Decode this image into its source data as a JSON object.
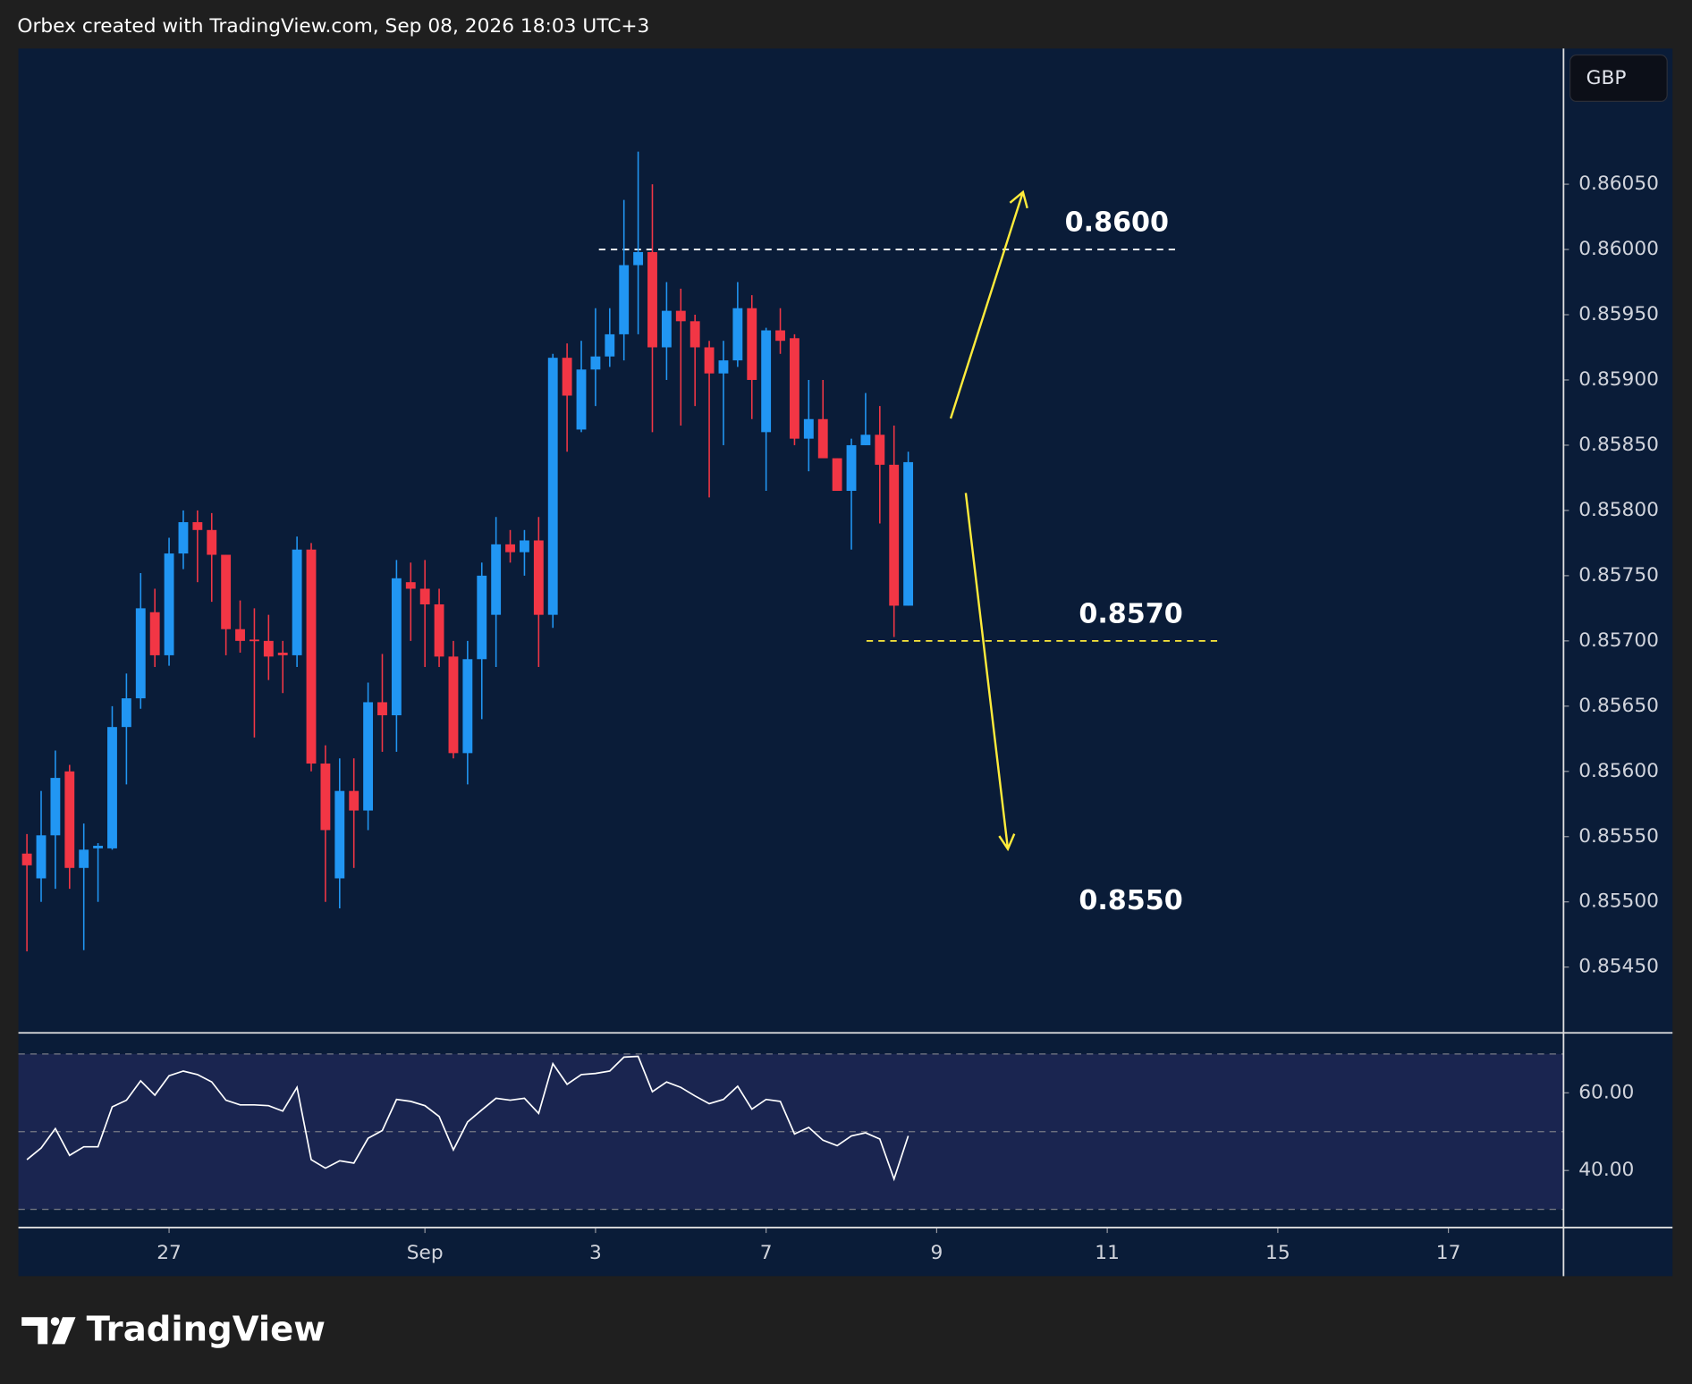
{
  "header": {
    "title": "Orbex created with TradingView.com, Sep 08, 2026 18:03 UTC+3"
  },
  "logo": "TradingView",
  "chart_data": [
    {
      "type": "candlestick",
      "currency": "GBP",
      "categories": [
        null,
        null,
        null,
        null,
        null,
        null,
        null,
        null,
        null,
        null,
        null,
        null,
        null,
        null,
        null,
        null,
        null,
        null,
        null,
        null,
        null,
        null,
        null,
        null,
        null,
        null,
        null,
        null,
        null,
        null,
        null,
        null,
        null,
        null,
        null,
        null,
        null,
        null,
        null,
        null,
        null,
        null,
        null,
        null,
        null,
        null,
        null,
        null,
        null,
        null,
        null,
        null,
        null,
        null,
        null,
        null,
        null,
        null,
        null,
        null,
        null,
        null,
        null
      ],
      "open": [
        0.85537,
        0.85518,
        0.85551,
        0.856,
        0.85526,
        0.85541,
        0.85541,
        0.85634,
        0.85656,
        0.85722,
        0.85689,
        0.85767,
        0.85791,
        0.85785,
        0.85766,
        0.85709,
        0.85701,
        0.857,
        0.85691,
        0.85689,
        0.8577,
        0.85606,
        0.85518,
        0.85585,
        0.8557,
        0.85653,
        0.85643,
        0.85745,
        0.8574,
        0.85728,
        0.85688,
        0.85614,
        0.85686,
        0.8572,
        0.85774,
        0.85768,
        0.85777,
        0.8572,
        0.85917,
        0.85862,
        0.85908,
        0.85918,
        0.85935,
        0.85988,
        0.85998,
        0.85925,
        0.85953,
        0.85945,
        0.85925,
        0.85905,
        0.85915,
        0.85955,
        0.8586,
        0.85938,
        0.85932,
        0.85855,
        0.8587,
        0.8584,
        0.85815,
        0.8585,
        0.85858,
        0.85835,
        0.85727
      ],
      "high": [
        0.85552,
        0.85585,
        0.85616,
        0.85605,
        0.8556,
        0.85545,
        0.8565,
        0.85675,
        0.85752,
        0.8574,
        0.85779,
        0.858,
        0.858,
        0.85798,
        0.85766,
        0.85731,
        0.85725,
        0.8572,
        0.857,
        0.8578,
        0.85775,
        0.8562,
        0.8561,
        0.8561,
        0.85668,
        0.8569,
        0.85762,
        0.8576,
        0.85762,
        0.8574,
        0.857,
        0.857,
        0.8576,
        0.85795,
        0.85785,
        0.85785,
        0.85795,
        0.8592,
        0.85928,
        0.8593,
        0.85955,
        0.85955,
        0.86038,
        0.86075,
        0.8605,
        0.85975,
        0.8597,
        0.8595,
        0.8593,
        0.8593,
        0.85975,
        0.85965,
        0.8594,
        0.85955,
        0.85935,
        0.859,
        0.859,
        0.8584,
        0.85855,
        0.8589,
        0.8588,
        0.85865,
        0.85845
      ],
      "low": [
        0.85462,
        0.855,
        0.8551,
        0.8551,
        0.85463,
        0.855,
        0.8554,
        0.8559,
        0.85648,
        0.8568,
        0.85681,
        0.85755,
        0.85745,
        0.8573,
        0.85689,
        0.85691,
        0.85626,
        0.8567,
        0.8566,
        0.8568,
        0.856,
        0.855,
        0.85495,
        0.85526,
        0.85555,
        0.85615,
        0.85615,
        0.857,
        0.8568,
        0.8568,
        0.8561,
        0.8559,
        0.8564,
        0.8568,
        0.8576,
        0.8575,
        0.8568,
        0.8571,
        0.85845,
        0.8586,
        0.8588,
        0.8591,
        0.85915,
        0.85935,
        0.8586,
        0.859,
        0.85865,
        0.8588,
        0.8581,
        0.8585,
        0.8591,
        0.8587,
        0.85815,
        0.8592,
        0.8585,
        0.8583,
        0.8584,
        0.85815,
        0.8577,
        0.8585,
        0.8579,
        0.85703,
        0.85727
      ],
      "close": [
        0.85528,
        0.85551,
        0.85595,
        0.85526,
        0.8554,
        0.85543,
        0.85634,
        0.85656,
        0.85725,
        0.85689,
        0.85767,
        0.85791,
        0.85785,
        0.85766,
        0.85709,
        0.857,
        0.857,
        0.85688,
        0.85689,
        0.8577,
        0.85606,
        0.85555,
        0.85585,
        0.8557,
        0.85653,
        0.85643,
        0.85748,
        0.8574,
        0.85728,
        0.85688,
        0.85614,
        0.85686,
        0.8575,
        0.85774,
        0.85768,
        0.85777,
        0.8572,
        0.85917,
        0.85888,
        0.85908,
        0.85918,
        0.85935,
        0.85988,
        0.85998,
        0.85925,
        0.85953,
        0.85945,
        0.85925,
        0.85905,
        0.85915,
        0.85955,
        0.859,
        0.85938,
        0.8593,
        0.85855,
        0.8587,
        0.8584,
        0.85815,
        0.8585,
        0.85858,
        0.85835,
        0.85727,
        0.85837
      ],
      "up_color": "#2196f3",
      "down_color": "#f23645",
      "xlim": [
        -0.6,
        108.1
      ],
      "xticks": [
        {
          "value": 10,
          "label": "27"
        },
        {
          "value": 28,
          "label": "Sep"
        },
        {
          "value": 40,
          "label": "3"
        },
        {
          "value": 52,
          "label": "7"
        },
        {
          "value": 64,
          "label": "9"
        },
        {
          "value": 76,
          "label": "11"
        },
        {
          "value": 88,
          "label": "15"
        },
        {
          "value": 100,
          "label": "17"
        }
      ],
      "ylim": [
        0.854,
        0.86154
      ],
      "yticks": [
        {
          "value": 0.8545,
          "label": "0.85450"
        },
        {
          "value": 0.855,
          "label": "0.85500"
        },
        {
          "value": 0.8555,
          "label": "0.85550"
        },
        {
          "value": 0.856,
          "label": "0.85600"
        },
        {
          "value": 0.8565,
          "label": "0.85650"
        },
        {
          "value": 0.857,
          "label": "0.85700"
        },
        {
          "value": 0.8575,
          "label": "0.85750"
        },
        {
          "value": 0.858,
          "label": "0.85800"
        },
        {
          "value": 0.8585,
          "label": "0.85850"
        },
        {
          "value": 0.859,
          "label": "0.85900"
        },
        {
          "value": 0.8595,
          "label": "0.85950"
        },
        {
          "value": 0.86,
          "label": "0.86000"
        },
        {
          "value": 0.8605,
          "label": "0.86050"
        }
      ],
      "levels": [
        {
          "value": 0.86,
          "label": "0.8600",
          "line_color": "#ffffff"
        },
        {
          "value": 0.857,
          "label": "0.8570",
          "line_color": "#ffeb3b"
        },
        {
          "value": 0.855,
          "label": "0.8550"
        }
      ]
    },
    {
      "type": "line",
      "color": "#ffffff",
      "values": [
        42.8,
        45.8,
        50.8,
        43.9,
        46.1,
        46.1,
        56.4,
        58.1,
        63.1,
        59.4,
        64.4,
        65.6,
        64.7,
        62.8,
        58.1,
        56.9,
        56.9,
        56.7,
        55.3,
        61.4,
        42.8,
        40.6,
        42.5,
        41.9,
        48.3,
        50.3,
        58.3,
        57.8,
        56.7,
        53.9,
        45.3,
        52.5,
        55.6,
        58.6,
        58.1,
        58.6,
        54.7,
        67.5,
        62.2,
        64.7,
        65.0,
        65.6,
        69.2,
        69.4,
        60.3,
        62.8,
        61.4,
        59.2,
        57.2,
        58.3,
        61.7,
        55.8,
        58.3,
        57.8,
        49.4,
        51.1,
        47.8,
        46.4,
        48.9,
        49.7,
        48.1,
        37.8,
        48.9
      ],
      "ylim": [
        25.3,
        75.3
      ],
      "yticks": [
        {
          "value": 40,
          "label": "40.00"
        },
        {
          "value": 60,
          "label": "60.00"
        }
      ],
      "levels": [
        30,
        50,
        70
      ],
      "band_color": "#1a2550"
    }
  ]
}
